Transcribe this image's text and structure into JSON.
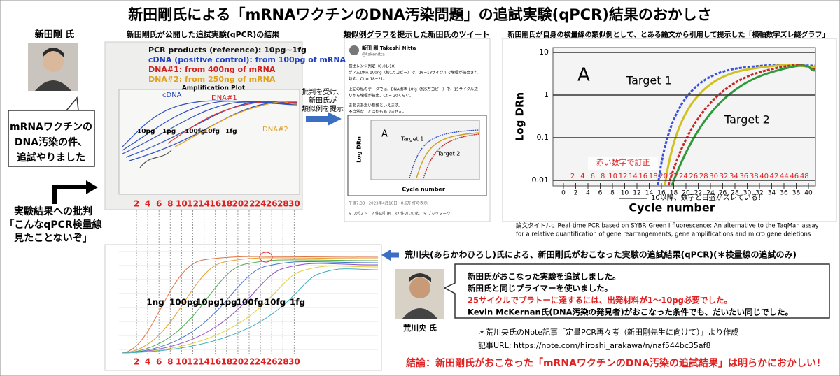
{
  "header": {
    "title": "新田剛氏による「mRNAワクチンのDNA汚染問題」の追試実験(qPCR)結果のおかしさ"
  },
  "nitta": {
    "name": "新田剛 氏",
    "bubble": [
      "mRNAワクチンの",
      "DNA汚染の件、",
      "追試やりました"
    ],
    "criticism": [
      "実験結果への批判",
      "「こんなqPCR検量線",
      "見たことないぞ」"
    ]
  },
  "panel1": {
    "title": "新田剛氏が公開した追試実験(qPCR)の結果",
    "legend": [
      "PCR products (reference): 10pg~1fg",
      "cDNA (positive control): from 100pg of mRNA",
      "DNA#1: from 400ng of mRNA",
      "DNA#2: from 250ng of mRNA"
    ],
    "plot_title": "Amplification Plot",
    "curve_labels": [
      "cDNA",
      "DNA#1",
      "DNA#2"
    ],
    "standard_labels": [
      "10pg",
      "1pg",
      "100fg",
      "10fg",
      "1fg"
    ],
    "cycle_labels": [
      2,
      4,
      6,
      8,
      10,
      12,
      14,
      16,
      18,
      20,
      22,
      24,
      26,
      28,
      30
    ]
  },
  "arrow_note": [
    "批判を受け、",
    "新田氏が",
    "類似例を提示"
  ],
  "panel2": {
    "title": "類似例グラフを提示した新田氏のツイート",
    "author": "新田 剛 Takeshi Nitta",
    "handle": "@takenitta",
    "text": [
      "検出レンジ判定（0.01-10）",
      "ゲノムDNA 100ng（約1万コピー）で、16~18サイクルで増幅が検出され",
      "始め、Ct = 18~21。",
      "上記の私のデータでは、DNA標準 10fg（約5万コピー）で、15サイクル辺",
      "りから増幅が検出、Ct = 20くらい。",
      "まあまあ近い数値といえます。",
      "不自然なことは何もありません。"
    ],
    "chart_label": "A",
    "targets": [
      "Target 1",
      "Target 2"
    ],
    "y_label": "Log DRn",
    "x_label": "Cycle number",
    "footer": "午後7:33 · 2023年4月10日 · 8.6万 件の表示",
    "stats": "6 リポスト　2 件の引用　32 件のいいね　5 ブックマーク"
  },
  "panel3": {
    "title": "新田剛氏が自身の検量線の類似例として、とある論文から引用して提示した「横軸数字ズレ謎グラフ」",
    "chart_label": "A",
    "targets": [
      "Target 1",
      "Target 2"
    ],
    "y_label": "Log DRn",
    "x_label": "Cycle number",
    "yticks": [
      10,
      1,
      0.1,
      0.01
    ],
    "xticks": [
      0,
      2,
      4,
      6,
      8,
      10,
      12,
      14,
      16,
      18,
      20,
      22,
      24,
      26,
      28,
      30,
      32,
      34,
      36,
      38,
      40
    ],
    "corrected_labels": [
      2,
      4,
      6,
      8,
      10,
      12,
      14,
      16,
      18,
      20,
      22,
      24,
      26,
      28,
      30,
      32,
      34,
      36,
      38,
      40,
      42,
      44,
      46,
      48
    ],
    "correction_note": "赤い数字で訂正",
    "shift_note": "10以降、数字と目盛がズレている！",
    "paper_note": [
      "論文タイトル：Real-time PCR based on SYBR-Green I fluorescence: An alternative to the TaqMan assay",
      "for a relative quantification of gene rearrangements, gene amplifications and micro gene deletions"
    ]
  },
  "arakawa": {
    "title": "荒川央(あらかわひろし)氏による、新田剛氏がおこなった実験の追試結果(qPCR)(＊検量線の追試のみ)",
    "bubble": [
      "新田氏がおこなった実験を追試しました。",
      "新田氏と同じプライマーを使いました。",
      "25サイクルでプラトーに達するには、出発材料が1～10pg必要でした。",
      "Kevin McKernan氏(DNA汚染の発見者)がおこなった条件でも、だいたい同じでした。"
    ],
    "name": "荒川央 氏",
    "series_labels": [
      "1ng",
      "100pg",
      "10pg",
      "1pg",
      "100fg",
      "10fg",
      "1fg"
    ],
    "cycle_labels": [
      2,
      4,
      6,
      8,
      10,
      12,
      14,
      16,
      18,
      20,
      22,
      24,
      26,
      28,
      30
    ],
    "source_note": "＊荒川央氏のNote記事「定量PCR再々考（新田剛先生に向けて）」より作成",
    "url": "記事URL; https://note.com/hiroshi_arakawa/n/naf544bc35af8"
  },
  "conclusion": "結論：新田剛氏がおこなった「mRNAワクチンのDNA汚染の追試結果」は明らかにおかしい！"
}
